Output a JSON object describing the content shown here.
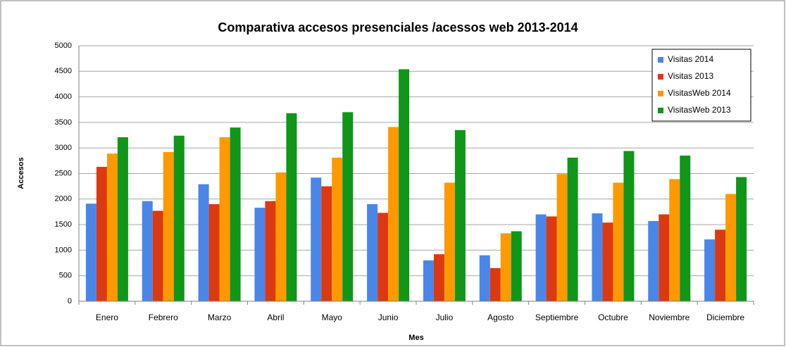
{
  "chart_data": {
    "type": "bar",
    "title": "Comparativa accesos presenciales /acessos web 2013-2014",
    "x_label": "Mes",
    "y_label": "Accesos",
    "categories": [
      "Enero",
      "Febrero",
      "Marzo",
      "Abril",
      "Mayo",
      "Junio",
      "Julio",
      "Agosto",
      "Septiembre",
      "Octubre",
      "Noviembre",
      "Diciembre"
    ],
    "series": [
      {
        "name": "Visitas 2014",
        "color": "#4a86e8",
        "values": [
          1910,
          1960,
          2290,
          1830,
          2420,
          1900,
          800,
          900,
          1700,
          1720,
          1570,
          1210
        ]
      },
      {
        "name": "Visitas 2013",
        "color": "#dc3912",
        "values": [
          2630,
          1770,
          1900,
          1960,
          2250,
          1730,
          920,
          650,
          1660,
          1540,
          1700,
          1400
        ]
      },
      {
        "name": "VisitasWeb 2014",
        "color": "#ff9900",
        "values": [
          2890,
          2920,
          3210,
          2520,
          2810,
          3410,
          2320,
          1330,
          2490,
          2320,
          2390,
          2100
        ]
      },
      {
        "name": "VisitasWeb 2013",
        "color": "#109618",
        "values": [
          3210,
          3240,
          3400,
          3680,
          3700,
          4540,
          3350,
          1370,
          2810,
          2940,
          2850,
          2430
        ]
      }
    ],
    "ylim": [
      0,
      5000
    ],
    "yticks": [
      0,
      500,
      1000,
      1500,
      2000,
      2500,
      3000,
      3500,
      4000,
      4500,
      5000
    ],
    "grid": true,
    "legend": "top-right"
  }
}
